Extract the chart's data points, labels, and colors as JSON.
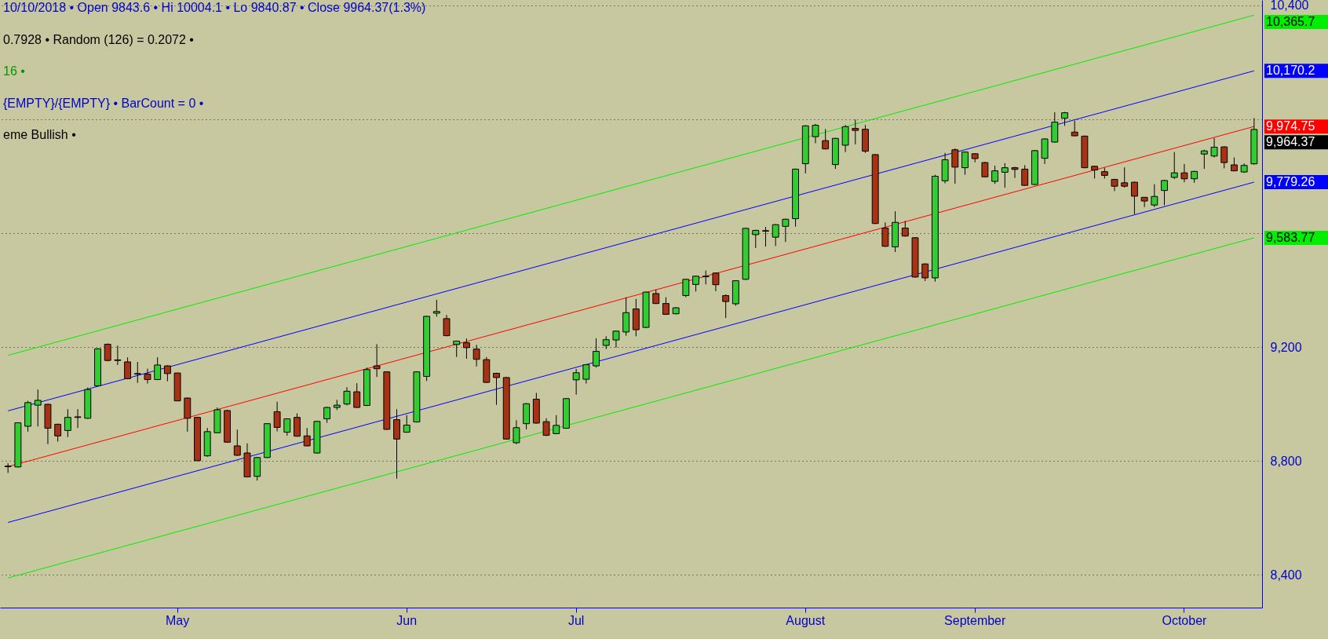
{
  "chart_data": {
    "type": "candlestick",
    "annotations": [
      "10/10/2018 • Open 9843.6 • Hi 10004.1 • Lo 9840.87 • Close 9964.37(1.3%)",
      "0.7928 • Random (126) = 0.2072 •",
      "16 •",
      "{EMPTY}/{EMPTY} • BarCount = 0 •",
      "eme Bullish •",
      "9,964.37"
    ],
    "categories": [
      null,
      null,
      null,
      null,
      null,
      null,
      null,
      null,
      null,
      null,
      null,
      null,
      null,
      null,
      null,
      null,
      null,
      "May",
      null,
      null,
      null,
      null,
      null,
      null,
      null,
      null,
      null,
      null,
      null,
      null,
      null,
      null,
      null,
      null,
      null,
      null,
      null,
      null,
      null,
      null,
      "Jun",
      null,
      null,
      null,
      null,
      null,
      null,
      null,
      null,
      null,
      null,
      null,
      null,
      null,
      null,
      null,
      null,
      "Jul",
      null,
      null,
      null,
      null,
      null,
      null,
      null,
      null,
      null,
      null,
      null,
      null,
      null,
      null,
      null,
      null,
      null,
      null,
      null,
      null,
      null,
      null,
      "August",
      null,
      null,
      null,
      null,
      null,
      null,
      null,
      null,
      null,
      null,
      null,
      null,
      null,
      null,
      null,
      null,
      "September",
      null,
      null,
      null,
      null,
      null,
      null,
      null,
      null,
      null,
      null,
      null,
      null,
      null,
      null,
      null,
      null,
      null,
      null,
      null,
      null,
      "October",
      null,
      null,
      null,
      null,
      null,
      null,
      null
    ],
    "ohlc": [
      [
        8780,
        8792,
        8758,
        8782
      ],
      [
        8779,
        8936,
        8777,
        8934
      ],
      [
        8922,
        9011,
        8903,
        9005
      ],
      [
        8996,
        9051,
        8921,
        9013
      ],
      [
        8999,
        9001,
        8859,
        8915
      ],
      [
        8929,
        8931,
        8868,
        8888
      ],
      [
        8907,
        8982,
        8884,
        8953
      ],
      [
        8953,
        8982,
        8916,
        8955
      ],
      [
        8950,
        9058,
        8948,
        9051
      ],
      [
        9064,
        9196,
        9062,
        9194
      ],
      [
        9210,
        9213,
        9150,
        9153
      ],
      [
        9155,
        9205,
        9137,
        9153
      ],
      [
        9148,
        9164,
        9087,
        9089
      ],
      [
        9107,
        9148,
        9074,
        9105
      ],
      [
        9105,
        9124,
        9072,
        9086
      ],
      [
        9086,
        9164,
        9084,
        9137
      ],
      [
        9134,
        9136,
        9080,
        9107
      ],
      [
        9109,
        9110,
        9010,
        9011
      ],
      [
        9021,
        9023,
        8903,
        8950
      ],
      [
        8953,
        8955,
        8800,
        8801
      ],
      [
        8818,
        8916,
        8815,
        8903
      ],
      [
        8899,
        8988,
        8897,
        8980
      ],
      [
        8977,
        8980,
        8864,
        8866
      ],
      [
        8853,
        8910,
        8818,
        8820
      ],
      [
        8828,
        8862,
        8742,
        8744
      ],
      [
        8746,
        8814,
        8731,
        8812
      ],
      [
        8812,
        8933,
        8810,
        8931
      ],
      [
        8973,
        9008,
        8904,
        8918
      ],
      [
        8901,
        8950,
        8889,
        8948
      ],
      [
        8953,
        8967,
        8885,
        8887
      ],
      [
        8888,
        8916,
        8851,
        8853
      ],
      [
        8828,
        8941,
        8826,
        8939
      ],
      [
        8948,
        8990,
        8934,
        8988
      ],
      [
        8988,
        9015,
        8979,
        8996
      ],
      [
        9000,
        9059,
        8995,
        9045
      ],
      [
        9043,
        9073,
        8986,
        8988
      ],
      [
        8995,
        9128,
        8993,
        9121
      ],
      [
        9134,
        9210,
        9095,
        9124
      ],
      [
        9113,
        9115,
        8909,
        8911
      ],
      [
        8945,
        8982,
        8738,
        8877
      ],
      [
        8901,
        8961,
        8899,
        8926
      ],
      [
        8937,
        9115,
        8935,
        9113
      ],
      [
        9097,
        9310,
        9081,
        9308
      ],
      [
        9319,
        9366,
        9307,
        9325
      ],
      [
        9300,
        9313,
        9238,
        9240
      ],
      [
        9209,
        9223,
        9165,
        9221
      ],
      [
        9215,
        9230,
        9159,
        9198
      ],
      [
        9193,
        9208,
        9132,
        9157
      ],
      [
        9156,
        9165,
        9074,
        9076
      ],
      [
        9108,
        9110,
        8997,
        9093
      ],
      [
        9093,
        9095,
        8875,
        8877
      ],
      [
        8864,
        8943,
        8859,
        8917
      ],
      [
        8931,
        9003,
        8911,
        9001
      ],
      [
        9017,
        9039,
        8931,
        8933
      ],
      [
        8938,
        8950,
        8888,
        8890
      ],
      [
        8896,
        8961,
        8894,
        8925
      ],
      [
        8915,
        9021,
        8913,
        9019
      ],
      [
        9085,
        9123,
        9033,
        9110
      ],
      [
        9087,
        9140,
        9072,
        9138
      ],
      [
        9134,
        9231,
        9128,
        9185
      ],
      [
        9206,
        9238,
        9193,
        9226
      ],
      [
        9225,
        9258,
        9198,
        9256
      ],
      [
        9253,
        9375,
        9240,
        9321
      ],
      [
        9334,
        9369,
        9238,
        9261
      ],
      [
        9269,
        9395,
        9267,
        9393
      ],
      [
        9388,
        9402,
        9351,
        9353
      ],
      [
        9353,
        9375,
        9313,
        9315
      ],
      [
        9317,
        9340,
        9315,
        9338
      ],
      [
        9381,
        9440,
        9375,
        9438
      ],
      [
        9420,
        9451,
        9395,
        9449
      ],
      [
        9447,
        9469,
        9420,
        9449
      ],
      [
        9460,
        9462,
        9396,
        9419
      ],
      [
        9381,
        9385,
        9302,
        9360
      ],
      [
        9352,
        9435,
        9345,
        9433
      ],
      [
        9438,
        9618,
        9436,
        9617
      ],
      [
        9595,
        9612,
        9548,
        9610
      ],
      [
        9607,
        9622,
        9553,
        9609
      ],
      [
        9586,
        9632,
        9555,
        9630
      ],
      [
        9624,
        9651,
        9569,
        9649
      ],
      [
        9651,
        9827,
        9623,
        9825
      ],
      [
        9844,
        9979,
        9810,
        9977
      ],
      [
        9939,
        9984,
        9916,
        9979
      ],
      [
        9925,
        9966,
        9894,
        9896
      ],
      [
        9841,
        9935,
        9826,
        9933
      ],
      [
        9909,
        9980,
        9885,
        9974
      ],
      [
        9968,
        9999,
        9912,
        9961
      ],
      [
        9965,
        9980,
        9882,
        9888
      ],
      [
        9876,
        9878,
        9632,
        9634
      ],
      [
        9618,
        9638,
        9552,
        9554
      ],
      [
        9552,
        9677,
        9534,
        9638
      ],
      [
        9618,
        9643,
        9588,
        9590
      ],
      [
        9584,
        9586,
        9444,
        9446
      ],
      [
        9492,
        9494,
        9432,
        9443
      ],
      [
        9443,
        9805,
        9430,
        9800
      ],
      [
        9784,
        9882,
        9775,
        9858
      ],
      [
        9893,
        9898,
        9774,
        9832
      ],
      [
        9830,
        9887,
        9805,
        9885
      ],
      [
        9879,
        9881,
        9849,
        9862
      ],
      [
        9848,
        9851,
        9796,
        9798
      ],
      [
        9782,
        9837,
        9773,
        9819
      ],
      [
        9814,
        9846,
        9760,
        9830
      ],
      [
        9830,
        9833,
        9794,
        9824
      ],
      [
        9825,
        9839,
        9766,
        9768
      ],
      [
        9771,
        9892,
        9769,
        9890
      ],
      [
        9863,
        9933,
        9843,
        9931
      ],
      [
        9920,
        10025,
        9918,
        9990
      ],
      [
        10004,
        10026,
        9977,
        10023
      ],
      [
        9955,
        9995,
        9940,
        9942
      ],
      [
        9941,
        9943,
        9828,
        9830
      ],
      [
        9835,
        9837,
        9792,
        9822
      ],
      [
        9816,
        9830,
        9792,
        9803
      ],
      [
        9789,
        9791,
        9748,
        9765
      ],
      [
        9777,
        9831,
        9760,
        9765
      ],
      [
        9779,
        9781,
        9667,
        9730
      ],
      [
        9726,
        9727,
        9692,
        9713
      ],
      [
        9699,
        9772,
        9692,
        9729
      ],
      [
        9750,
        9787,
        9698,
        9785
      ],
      [
        9796,
        9885,
        9790,
        9812
      ],
      [
        9812,
        9843,
        9779,
        9791
      ],
      [
        9791,
        9819,
        9777,
        9817
      ],
      [
        9878,
        9893,
        9826,
        9889
      ],
      [
        9871,
        9934,
        9866,
        9902
      ],
      [
        9903,
        9905,
        9828,
        9848
      ],
      [
        9840,
        9866,
        9817,
        9819
      ],
      [
        9815,
        9845,
        9812,
        9838
      ],
      [
        9843.6,
        10004.1,
        9840.87,
        9964.37
      ]
    ],
    "colors": [
      "#33cc33",
      "#33cc33",
      "#33cc33",
      "#33cc33",
      "#a83214",
      "#a83214",
      "#33cc33",
      "#33cc33",
      "#33cc33",
      "#33cc33",
      "#a83214",
      "#a83214",
      "#a83214",
      "#a83214",
      "#a83214",
      "#33cc33",
      "#a83214",
      "#a83214",
      "#a83214",
      "#a83214",
      "#33cc33",
      "#33cc33",
      "#a83214",
      "#a83214",
      "#a83214",
      "#33cc33",
      "#33cc33",
      "#a83214",
      "#33cc33",
      "#a83214",
      "#a83214",
      "#33cc33",
      "#33cc33",
      "#33cc33",
      "#33cc33",
      "#a83214",
      "#33cc33",
      "#a83214",
      "#a83214",
      "#a83214",
      "#33cc33",
      "#33cc33",
      "#33cc33",
      "#33cc33",
      "#a83214",
      "#33cc33",
      "#a83214",
      "#a83214",
      "#a83214",
      "#a83214",
      "#a83214",
      "#33cc33",
      "#33cc33",
      "#a83214",
      "#a83214",
      "#33cc33",
      "#33cc33",
      "#33cc33",
      "#33cc33",
      "#33cc33",
      "#33cc33",
      "#33cc33",
      "#33cc33",
      "#a83214",
      "#33cc33",
      "#a83214",
      "#a83214",
      "#33cc33",
      "#33cc33",
      "#33cc33",
      "#33cc33",
      "#a83214",
      "#a83214",
      "#33cc33",
      "#33cc33",
      "#33cc33",
      "#33cc33",
      "#33cc33",
      "#33cc33",
      "#33cc33",
      "#33cc33",
      "#33cc33",
      "#a83214",
      "#33cc33",
      "#33cc33",
      "#a83214",
      "#a83214",
      "#a83214",
      "#a83214",
      "#33cc33",
      "#a83214",
      "#a83214",
      "#a83214",
      "#33cc33",
      "#33cc33",
      "#a83214",
      "#33cc33",
      "#a83214",
      "#a83214",
      "#33cc33",
      "#33cc33",
      "#a83214",
      "#a83214",
      "#33cc33",
      "#33cc33",
      "#33cc33",
      "#33cc33",
      "#a83214",
      "#a83214",
      "#a83214",
      "#a83214",
      "#a83214",
      "#a83214",
      "#a83214",
      "#a83214",
      "#33cc33",
      "#33cc33",
      "#33cc33",
      "#a83214",
      "#33cc33",
      "#33cc33",
      "#33cc33",
      "#a83214",
      "#a83214",
      "#33cc33",
      "#33cc33"
    ],
    "series": [
      {
        "type": "line",
        "name": "10,365.7",
        "color": "#00ee00",
        "values": [
          9171,
          null,
          null,
          null,
          null,
          null,
          null,
          null,
          null,
          null,
          null,
          null,
          null,
          null,
          null,
          null,
          null,
          null,
          null,
          null,
          null,
          null,
          null,
          null,
          null,
          null,
          null,
          null,
          null,
          null,
          null,
          null,
          null,
          null,
          null,
          null,
          null,
          null,
          null,
          null,
          null,
          null,
          null,
          null,
          null,
          null,
          null,
          null,
          null,
          null,
          null,
          null,
          null,
          null,
          null,
          null,
          null,
          null,
          null,
          null,
          null,
          null,
          null,
          null,
          null,
          null,
          null,
          null,
          null,
          null,
          null,
          null,
          null,
          null,
          null,
          null,
          null,
          null,
          null,
          null,
          null,
          null,
          null,
          null,
          null,
          null,
          null,
          null,
          null,
          null,
          null,
          null,
          null,
          null,
          null,
          null,
          null,
          null,
          null,
          null,
          null,
          null,
          null,
          null,
          null,
          null,
          null,
          null,
          null,
          null,
          null,
          null,
          null,
          null,
          null,
          null,
          null,
          null,
          null,
          null,
          null,
          null,
          null,
          null,
          null,
          10365.7
        ]
      },
      {
        "type": "line",
        "name": "10,170.2",
        "color": "#0000ff",
        "values": [
          8976,
          null,
          null,
          null,
          null,
          null,
          null,
          null,
          null,
          null,
          null,
          null,
          null,
          null,
          null,
          null,
          null,
          null,
          null,
          null,
          null,
          null,
          null,
          null,
          null,
          null,
          null,
          null,
          null,
          null,
          null,
          null,
          null,
          null,
          null,
          null,
          null,
          null,
          null,
          null,
          null,
          null,
          null,
          null,
          null,
          null,
          null,
          null,
          null,
          null,
          null,
          null,
          null,
          null,
          null,
          null,
          null,
          null,
          null,
          null,
          null,
          null,
          null,
          null,
          null,
          null,
          null,
          null,
          null,
          null,
          null,
          null,
          null,
          null,
          null,
          null,
          null,
          null,
          null,
          null,
          null,
          null,
          null,
          null,
          null,
          null,
          null,
          null,
          null,
          null,
          null,
          null,
          null,
          null,
          null,
          null,
          null,
          null,
          null,
          null,
          null,
          null,
          null,
          null,
          null,
          null,
          null,
          null,
          null,
          null,
          null,
          null,
          null,
          null,
          null,
          null,
          null,
          null,
          null,
          null,
          null,
          null,
          null,
          null,
          null,
          10170.2
        ]
      },
      {
        "type": "line",
        "name": "9,974.75",
        "color": "#ff0000",
        "values": [
          8780,
          null,
          null,
          null,
          null,
          null,
          null,
          null,
          null,
          null,
          null,
          null,
          null,
          null,
          null,
          null,
          null,
          null,
          null,
          null,
          null,
          null,
          null,
          null,
          null,
          null,
          null,
          null,
          null,
          null,
          null,
          null,
          null,
          null,
          null,
          null,
          null,
          null,
          null,
          null,
          null,
          null,
          null,
          null,
          null,
          null,
          null,
          null,
          null,
          null,
          null,
          null,
          null,
          null,
          null,
          null,
          null,
          null,
          null,
          null,
          null,
          null,
          null,
          null,
          null,
          null,
          null,
          null,
          null,
          null,
          null,
          null,
          null,
          null,
          null,
          null,
          null,
          null,
          null,
          null,
          null,
          null,
          null,
          null,
          null,
          null,
          null,
          null,
          null,
          null,
          null,
          null,
          null,
          null,
          null,
          null,
          null,
          null,
          null,
          null,
          null,
          null,
          null,
          null,
          null,
          null,
          null,
          null,
          null,
          null,
          null,
          null,
          null,
          null,
          null,
          null,
          null,
          null,
          null,
          null,
          null,
          null,
          null,
          null,
          null,
          9974.75
        ]
      },
      {
        "type": "line",
        "name": "9,779.26",
        "color": "#0000ff",
        "values": [
          8584,
          null,
          null,
          null,
          null,
          null,
          null,
          null,
          null,
          null,
          null,
          null,
          null,
          null,
          null,
          null,
          null,
          null,
          null,
          null,
          null,
          null,
          null,
          null,
          null,
          null,
          null,
          null,
          null,
          null,
          null,
          null,
          null,
          null,
          null,
          null,
          null,
          null,
          null,
          null,
          null,
          null,
          null,
          null,
          null,
          null,
          null,
          null,
          null,
          null,
          null,
          null,
          null,
          null,
          null,
          null,
          null,
          null,
          null,
          null,
          null,
          null,
          null,
          null,
          null,
          null,
          null,
          null,
          null,
          null,
          null,
          null,
          null,
          null,
          null,
          null,
          null,
          null,
          null,
          null,
          null,
          null,
          null,
          null,
          null,
          null,
          null,
          null,
          null,
          null,
          null,
          null,
          null,
          null,
          null,
          null,
          null,
          null,
          null,
          null,
          null,
          null,
          null,
          null,
          null,
          null,
          null,
          null,
          null,
          null,
          null,
          null,
          null,
          null,
          null,
          null,
          null,
          null,
          null,
          null,
          null,
          null,
          null,
          null,
          null,
          9779.26
        ]
      },
      {
        "type": "line",
        "name": "9,583.77",
        "color": "#00ee00",
        "values": [
          8389,
          null,
          null,
          null,
          null,
          null,
          null,
          null,
          null,
          null,
          null,
          null,
          null,
          null,
          null,
          null,
          null,
          null,
          null,
          null,
          null,
          null,
          null,
          null,
          null,
          null,
          null,
          null,
          null,
          null,
          null,
          null,
          null,
          null,
          null,
          null,
          null,
          null,
          null,
          null,
          null,
          null,
          null,
          null,
          null,
          null,
          null,
          null,
          null,
          null,
          null,
          null,
          null,
          null,
          null,
          null,
          null,
          null,
          null,
          null,
          null,
          null,
          null,
          null,
          null,
          null,
          null,
          null,
          null,
          null,
          null,
          null,
          null,
          null,
          null,
          null,
          null,
          null,
          null,
          null,
          null,
          null,
          null,
          null,
          null,
          null,
          null,
          null,
          null,
          null,
          null,
          null,
          null,
          null,
          null,
          null,
          null,
          null,
          null,
          null,
          null,
          null,
          null,
          null,
          null,
          null,
          null,
          null,
          null,
          null,
          null,
          null,
          null,
          null,
          null,
          null,
          null,
          null,
          null,
          null,
          null,
          null,
          null,
          null,
          null,
          9583.77
        ]
      }
    ],
    "ylim": [
      8285,
      10419
    ],
    "yticks": [
      {
        "value": 8400,
        "label": "8,400"
      },
      {
        "value": 8800,
        "label": "8,800"
      },
      {
        "value": 9200,
        "label": "9,200"
      },
      {
        "value": 9600,
        "label": null
      },
      {
        "value": 10000,
        "label": null
      },
      {
        "value": 10400,
        "label": "10,400"
      }
    ],
    "grid": "y"
  }
}
